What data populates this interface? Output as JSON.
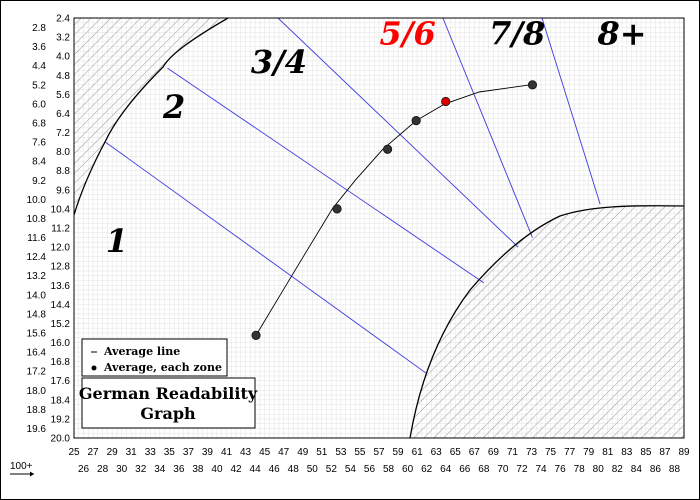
{
  "chart_data": {
    "type": "line",
    "title": "German Readability Graph",
    "x_corner_label": "100+",
    "x_ticks_top": [
      "25",
      "27",
      "29",
      "31",
      "33",
      "35",
      "37",
      "39",
      "41",
      "43",
      "45",
      "47",
      "49",
      "51",
      "53",
      "55",
      "57",
      "59",
      "61",
      "63",
      "65",
      "67",
      "69",
      "71",
      "73",
      "75",
      "77",
      "79",
      "81",
      "83",
      "85",
      "87",
      "89"
    ],
    "x_ticks_bottom": [
      "26",
      "28",
      "30",
      "32",
      "34",
      "36",
      "38",
      "40",
      "42",
      "44",
      "46",
      "48",
      "50",
      "52",
      "54",
      "56",
      "58",
      "60",
      "62",
      "64",
      "66",
      "68",
      "70",
      "72",
      "74",
      "76",
      "78",
      "80",
      "82",
      "84",
      "86",
      "88"
    ],
    "y_ticks_left": [
      "2.8",
      "3.6",
      "4.4",
      "5.2",
      "6.0",
      "6.8",
      "7.6",
      "8.4",
      "9.2",
      "10.0",
      "10.8",
      "11.6",
      "12.4",
      "13.2",
      "14.0",
      "14.8",
      "15.6",
      "16.4",
      "17.2",
      "18.0",
      "18.8",
      "19.6"
    ],
    "y_ticks_right": [
      "2.4",
      "3.2",
      "4.0",
      "4.8",
      "5.6",
      "6.4",
      "7.2",
      "8.0",
      "8.8",
      "9.6",
      "10.4",
      "11.2",
      "12.0",
      "12.8",
      "13.6",
      "14.4",
      "15.2",
      "16.0",
      "16.8",
      "17.6",
      "18.4",
      "19.2",
      "20.0"
    ],
    "xlim": [
      25,
      89
    ],
    "ylim": [
      2.4,
      20.0
    ],
    "zones": [
      {
        "label": "1",
        "x": 29.5,
        "y": 12.2,
        "color": "#000000"
      },
      {
        "label": "2",
        "x": 35.5,
        "y": 6.6,
        "color": "#000000"
      },
      {
        "label": "3/4",
        "x": 46.5,
        "y": 4.7,
        "color": "#000000"
      },
      {
        "label": "5/6",
        "x": 60.0,
        "y": 3.5,
        "color": "#ff0000"
      },
      {
        "label": "7/8",
        "x": 71.5,
        "y": 3.5,
        "color": "#000000"
      },
      {
        "label": "8+",
        "x": 82.5,
        "y": 3.5,
        "color": "#000000"
      }
    ],
    "series": [
      {
        "name": "Average line",
        "type": "line",
        "x": [
          44.1,
          46.5,
          49.2,
          52.1,
          54.5,
          57.4,
          60.9,
          63.9,
          67.5,
          72.9
        ],
        "y": [
          15.7,
          14.1,
          12.3,
          10.4,
          9.2,
          7.9,
          6.7,
          6.0,
          5.5,
          5.2
        ]
      },
      {
        "name": "Average, each zone",
        "type": "scatter",
        "points": [
          {
            "x": 44.1,
            "y": 15.7,
            "color": "#333333"
          },
          {
            "x": 52.6,
            "y": 10.4,
            "color": "#333333"
          },
          {
            "x": 57.9,
            "y": 7.9,
            "color": "#333333"
          },
          {
            "x": 60.9,
            "y": 6.7,
            "color": "#333333"
          },
          {
            "x": 64.0,
            "y": 5.9,
            "color": "#dd0000"
          },
          {
            "x": 73.1,
            "y": 5.2,
            "color": "#333333"
          }
        ]
      }
    ],
    "zone_boundaries": [
      {
        "x": [
          28.3,
          62.0
        ],
        "y": [
          7.6,
          17.3
        ]
      },
      {
        "x": [
          34.8,
          68.0
        ],
        "y": [
          4.5,
          13.5
        ]
      },
      {
        "x": [
          46.4,
          71.6
        ],
        "y": [
          2.4,
          12.0
        ]
      },
      {
        "x": [
          63.7,
          73.1
        ],
        "y": [
          2.4,
          11.6
        ]
      },
      {
        "x": [
          74.1,
          80.2
        ],
        "y": [
          2.4,
          10.2
        ]
      }
    ],
    "hatched_regions": [
      "top-left",
      "bottom-right"
    ],
    "grid": true,
    "legend": {
      "position": "bottom-left",
      "entries": [
        {
          "symbol": "dash",
          "label": "Average line"
        },
        {
          "symbol": "dot",
          "label": "Average, each zone"
        }
      ]
    },
    "colors": {
      "boundary": "#3a3ae0",
      "curve": "#000000",
      "grid": "#e6e6e6",
      "hatch": "#9a9a9a",
      "highlight": "#ff0000"
    }
  }
}
